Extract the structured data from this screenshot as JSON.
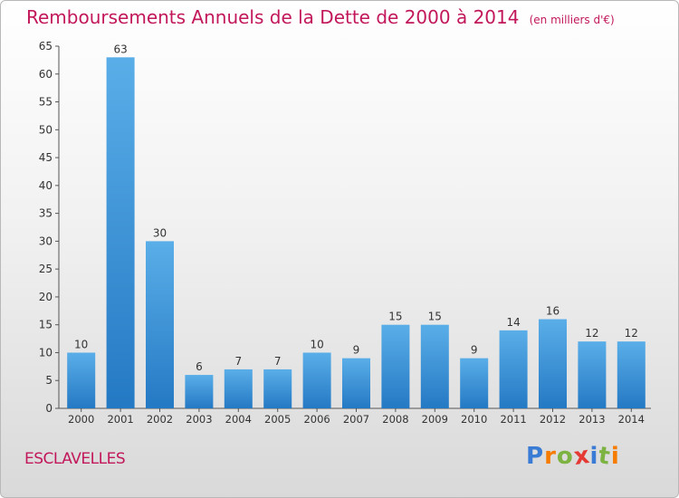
{
  "title": "Remboursements Annuels de la Dette de 2000 à 2014",
  "unit_note": "(en milliers d'€)",
  "commune": "ESCLAVELLES",
  "logo": {
    "text": "Proxiti",
    "colors": [
      "#3a7bd5",
      "#f57c00",
      "#7cb342",
      "#e53935",
      "#3a7bd5",
      "#7cb342",
      "#f57c00"
    ]
  },
  "chart_data": {
    "type": "bar",
    "categories": [
      "2000",
      "2001",
      "2002",
      "2003",
      "2004",
      "2005",
      "2006",
      "2007",
      "2008",
      "2009",
      "2010",
      "2011",
      "2012",
      "2013",
      "2014"
    ],
    "values": [
      10,
      63,
      30,
      6,
      7,
      7,
      10,
      9,
      15,
      15,
      9,
      14,
      16,
      12,
      12
    ],
    "ylim": [
      0,
      65
    ],
    "yticks": [
      0,
      5,
      10,
      15,
      20,
      25,
      30,
      35,
      40,
      45,
      50,
      55,
      60,
      65
    ],
    "grid": false,
    "colors": {
      "bar_light": "#5aaee8",
      "bar_dark": "#2479c4",
      "axis": "#555555",
      "text": "#333333",
      "title": "#c2185b"
    }
  }
}
